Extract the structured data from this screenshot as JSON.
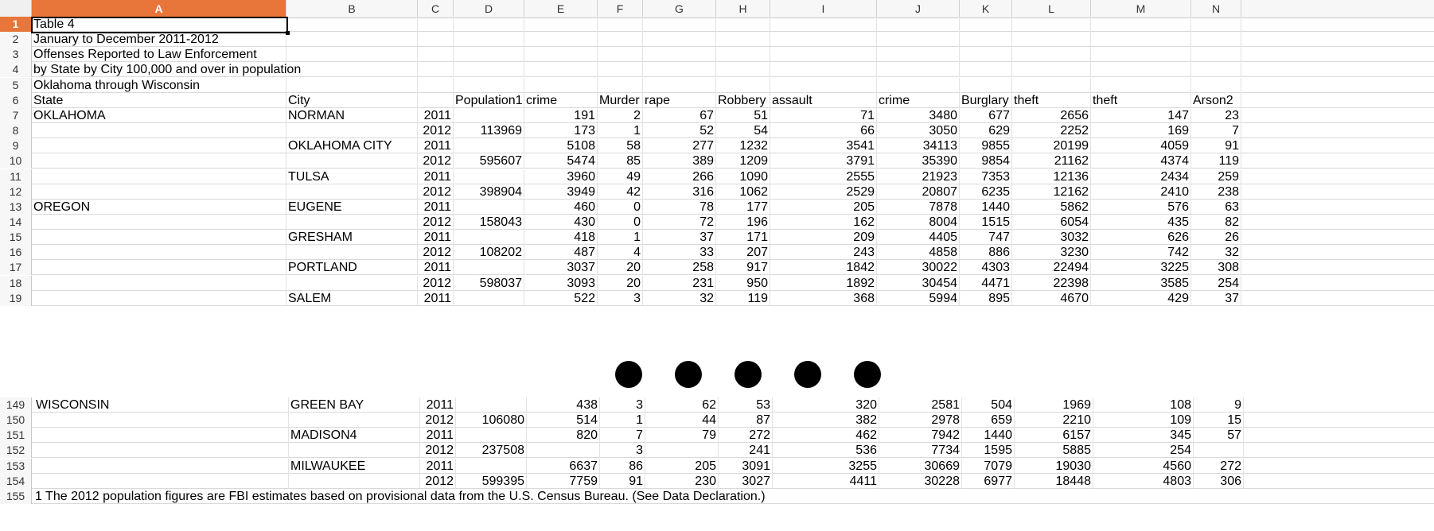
{
  "columns": [
    "A",
    "B",
    "C",
    "D",
    "E",
    "F",
    "G",
    "H",
    "I",
    "J",
    "K",
    "L",
    "M",
    "N"
  ],
  "active_column": "A",
  "top_rows": [
    {
      "num": "1",
      "cells": [
        "Table 4",
        "",
        "",
        "",
        "",
        "",
        "",
        "",
        "",
        "",
        "",
        "",
        "",
        ""
      ]
    },
    {
      "num": "2",
      "cells": [
        "January to December 2011-2012",
        "",
        "",
        "",
        "",
        "",
        "",
        "",
        "",
        "",
        "",
        "",
        "",
        ""
      ]
    },
    {
      "num": "3",
      "cells": [
        "Offenses Reported to Law Enforcement",
        "",
        "",
        "",
        "",
        "",
        "",
        "",
        "",
        "",
        "",
        "",
        "",
        ""
      ]
    },
    {
      "num": "4",
      "cells": [
        "by State by City 100,000 and over in population",
        "",
        "",
        "",
        "",
        "",
        "",
        "",
        "",
        "",
        "",
        "",
        "",
        ""
      ]
    },
    {
      "num": "5",
      "cells": [
        "Oklahoma through Wisconsin",
        "",
        "",
        "",
        "",
        "",
        "",
        "",
        "",
        "",
        "",
        "",
        "",
        ""
      ]
    },
    {
      "num": "6",
      "cells": [
        "State",
        "City",
        "",
        "Population1",
        "crime",
        "Murder",
        "rape",
        "Robbery",
        "assault",
        "crime",
        "Burglary",
        "theft",
        "theft",
        "Arson2"
      ]
    },
    {
      "num": "7",
      "cells": [
        "OKLAHOMA",
        "NORMAN",
        "2011",
        "",
        "191",
        "2",
        "67",
        "51",
        "71",
        "3480",
        "677",
        "2656",
        "147",
        "23"
      ]
    },
    {
      "num": "8",
      "cells": [
        "",
        "",
        "2012",
        "113969",
        "173",
        "1",
        "52",
        "54",
        "66",
        "3050",
        "629",
        "2252",
        "169",
        "7"
      ]
    },
    {
      "num": "9",
      "cells": [
        "",
        "OKLAHOMA CITY",
        "2011",
        "",
        "5108",
        "58",
        "277",
        "1232",
        "3541",
        "34113",
        "9855",
        "20199",
        "4059",
        "91"
      ]
    },
    {
      "num": "10",
      "cells": [
        "",
        "",
        "2012",
        "595607",
        "5474",
        "85",
        "389",
        "1209",
        "3791",
        "35390",
        "9854",
        "21162",
        "4374",
        "119"
      ]
    },
    {
      "num": "11",
      "cells": [
        "",
        "TULSA",
        "2011",
        "",
        "3960",
        "49",
        "266",
        "1090",
        "2555",
        "21923",
        "7353",
        "12136",
        "2434",
        "259"
      ]
    },
    {
      "num": "12",
      "cells": [
        "",
        "",
        "2012",
        "398904",
        "3949",
        "42",
        "316",
        "1062",
        "2529",
        "20807",
        "6235",
        "12162",
        "2410",
        "238"
      ]
    },
    {
      "num": "13",
      "cells": [
        "OREGON",
        "EUGENE",
        "2011",
        "",
        "460",
        "0",
        "78",
        "177",
        "205",
        "7878",
        "1440",
        "5862",
        "576",
        "63"
      ]
    },
    {
      "num": "14",
      "cells": [
        "",
        "",
        "2012",
        "158043",
        "430",
        "0",
        "72",
        "196",
        "162",
        "8004",
        "1515",
        "6054",
        "435",
        "82"
      ]
    },
    {
      "num": "15",
      "cells": [
        "",
        "GRESHAM",
        "2011",
        "",
        "418",
        "1",
        "37",
        "171",
        "209",
        "4405",
        "747",
        "3032",
        "626",
        "26"
      ]
    },
    {
      "num": "16",
      "cells": [
        "",
        "",
        "2012",
        "108202",
        "487",
        "4",
        "33",
        "207",
        "243",
        "4858",
        "886",
        "3230",
        "742",
        "32"
      ]
    },
    {
      "num": "17",
      "cells": [
        "",
        "PORTLAND",
        "2011",
        "",
        "3037",
        "20",
        "258",
        "917",
        "1842",
        "30022",
        "4303",
        "22494",
        "3225",
        "308"
      ]
    },
    {
      "num": "18",
      "cells": [
        "",
        "",
        "2012",
        "598037",
        "3093",
        "20",
        "231",
        "950",
        "1892",
        "30454",
        "4471",
        "22398",
        "3585",
        "254"
      ]
    },
    {
      "num": "19",
      "cells": [
        "",
        "SALEM",
        "2011",
        "",
        "522",
        "3",
        "32",
        "119",
        "368",
        "5994",
        "895",
        "4670",
        "429",
        "37"
      ]
    }
  ],
  "bottom_rows": [
    {
      "num": "149",
      "cells": [
        "WISCONSIN",
        "GREEN BAY",
        "2011",
        "",
        "438",
        "3",
        "62",
        "53",
        "320",
        "2581",
        "504",
        "1969",
        "108",
        "9"
      ]
    },
    {
      "num": "150",
      "cells": [
        "",
        "",
        "2012",
        "106080",
        "514",
        "1",
        "44",
        "87",
        "382",
        "2978",
        "659",
        "2210",
        "109",
        "15"
      ]
    },
    {
      "num": "151",
      "cells": [
        "",
        "MADISON4",
        "2011",
        "",
        "820",
        "7",
        "79",
        "272",
        "462",
        "7942",
        "1440",
        "6157",
        "345",
        "57"
      ]
    },
    {
      "num": "152",
      "cells": [
        "",
        "",
        "2012",
        "237508",
        "",
        "3",
        "",
        "241",
        "536",
        "7734",
        "1595",
        "5885",
        "254",
        ""
      ]
    },
    {
      "num": "153",
      "cells": [
        "",
        "MILWAUKEE",
        "2011",
        "",
        "6637",
        "86",
        "205",
        "3091",
        "3255",
        "30669",
        "7079",
        "19030",
        "4560",
        "272"
      ]
    },
    {
      "num": "154",
      "cells": [
        "",
        "",
        "2012",
        "599395",
        "7759",
        "91",
        "230",
        "3027",
        "4411",
        "30228",
        "6977",
        "18448",
        "4803",
        "306"
      ]
    }
  ],
  "footnote": {
    "num": "155",
    "text": "1 The 2012 population figures are FBI estimates based on provisional data from the U.S. Census Bureau.  (See Data Declaration.)"
  },
  "ellipsis_dots": 5,
  "accent_color": "#e8753a"
}
